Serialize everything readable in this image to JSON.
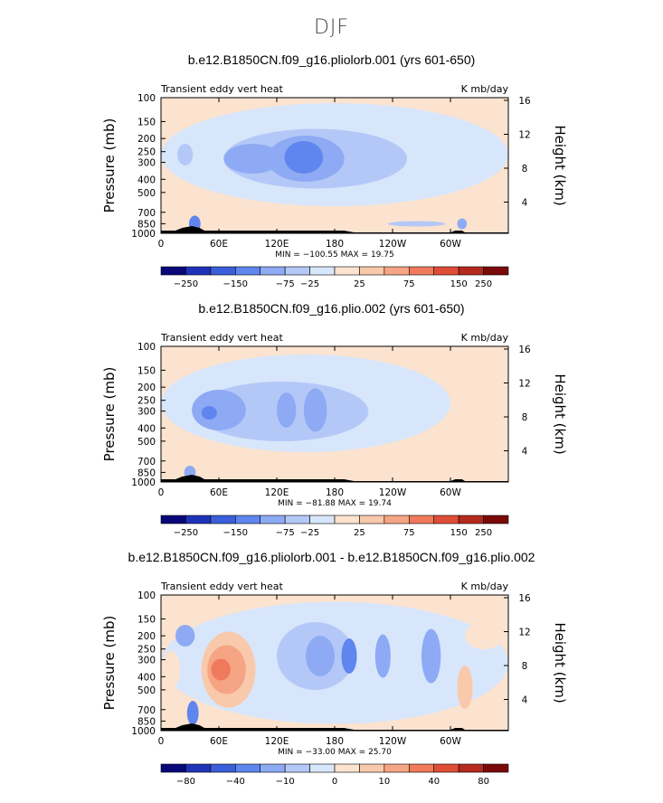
{
  "page_title": "DJF",
  "colors": {
    "level_palette": [
      "#08087a",
      "#1f33b8",
      "#3a5fd9",
      "#5f86ee",
      "#8eaaf4",
      "#b4c8f8",
      "#d8e6fb",
      "#fbe3cf",
      "#f9c9ab",
      "#f6a584",
      "#ef7a5c",
      "#df4d36",
      "#b52a1d",
      "#7a0a0a"
    ],
    "land": "#000000"
  },
  "chart_data": [
    {
      "type": "heatmap",
      "title": "b.e12.B1850CN.f09_g16.pliolorb.001 (yrs 601-650)",
      "left_label": "Transient eddy vert heat",
      "right_label": "K mb/day",
      "ylabel": "Pressure (mb)",
      "ylabel_right": "Height (km)",
      "x_ticks": [
        "0",
        "60E",
        "120E",
        "180",
        "120W",
        "60W"
      ],
      "y_ticks": [
        "100",
        "150",
        "200",
        "250",
        "300",
        "400",
        "500",
        "700",
        "850",
        "1000"
      ],
      "y_ticks_right": [
        "16",
        "12",
        "8",
        "4"
      ],
      "stats": "MIN = −100.55   MAX =  19.75",
      "colorbar_labels": [
        "−250",
        "−150",
        "−75",
        "−25",
        "25",
        "75",
        "150",
        "250"
      ],
      "ylim": [
        1000,
        100
      ],
      "xlim": [
        0,
        360
      ]
    },
    {
      "type": "heatmap",
      "title": "b.e12.B1850CN.f09_g16.plio.002 (yrs 601-650)",
      "left_label": "Transient eddy vert heat",
      "right_label": "K mb/day",
      "ylabel": "Pressure (mb)",
      "ylabel_right": "Height (km)",
      "x_ticks": [
        "0",
        "60E",
        "120E",
        "180",
        "120W",
        "60W"
      ],
      "y_ticks": [
        "100",
        "150",
        "200",
        "250",
        "300",
        "400",
        "500",
        "700",
        "850",
        "1000"
      ],
      "y_ticks_right": [
        "16",
        "12",
        "8",
        "4"
      ],
      "stats": "MIN =  −81.88   MAX =  19.74",
      "colorbar_labels": [
        "−250",
        "−150",
        "−75",
        "−25",
        "25",
        "75",
        "150",
        "250"
      ],
      "ylim": [
        1000,
        100
      ],
      "xlim": [
        0,
        360
      ]
    },
    {
      "type": "heatmap",
      "title": "b.e12.B1850CN.f09_g16.pliolorb.001 - b.e12.B1850CN.f09_g16.plio.002",
      "left_label": "Transient eddy vert heat",
      "right_label": "K mb/day",
      "ylabel": "Pressure (mb)",
      "ylabel_right": "Height (km)",
      "x_ticks": [
        "0",
        "60E",
        "120E",
        "180",
        "120W",
        "60W"
      ],
      "y_ticks": [
        "100",
        "150",
        "200",
        "250",
        "300",
        "400",
        "500",
        "700",
        "850",
        "1000"
      ],
      "y_ticks_right": [
        "16",
        "12",
        "8",
        "4"
      ],
      "stats": "MIN = −33.00   MAX =  25.70",
      "colorbar_labels": [
        "−80",
        "−40",
        "−10",
        "0",
        "10",
        "40",
        "80"
      ],
      "ylim": [
        1000,
        100
      ],
      "xlim": [
        0,
        360
      ]
    }
  ]
}
